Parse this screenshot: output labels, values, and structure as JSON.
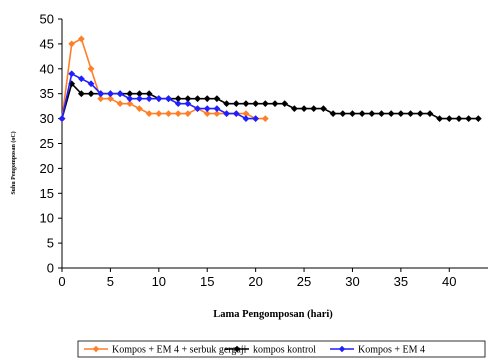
{
  "chart_data": {
    "type": "line",
    "title": "",
    "xlabel": "Lama Pengomposan (hari)",
    "ylabel": "Suhu Pengomposan (oC)",
    "xlim": [
      0,
      44
    ],
    "ylim": [
      0,
      50
    ],
    "xticks": [
      0,
      5,
      10,
      15,
      20,
      25,
      30,
      35,
      40
    ],
    "yticks": [
      0,
      5,
      10,
      15,
      20,
      25,
      30,
      35,
      40,
      45,
      50
    ],
    "grid": false,
    "legend_position": "bottom",
    "series": [
      {
        "name": "Kompos + EM 4 + serbuk gergaji",
        "color": "#ff7f27",
        "marker": "diamond",
        "x": [
          0,
          1,
          2,
          3,
          4,
          5,
          6,
          7,
          8,
          9,
          10,
          11,
          12,
          13,
          14,
          15,
          16,
          17,
          18,
          19,
          20,
          21
        ],
        "y": [
          30,
          45,
          46,
          40,
          34,
          34,
          33,
          33,
          32,
          31,
          31,
          31,
          31,
          31,
          32,
          31,
          31,
          31,
          31,
          31,
          30,
          30
        ]
      },
      {
        "name": "kompos kontrol",
        "color": "#000000",
        "marker": "diamond",
        "x": [
          0,
          1,
          2,
          3,
          4,
          5,
          6,
          7,
          8,
          9,
          10,
          11,
          12,
          13,
          14,
          15,
          16,
          17,
          18,
          19,
          20,
          21,
          22,
          23,
          24,
          25,
          26,
          27,
          28,
          29,
          30,
          31,
          32,
          33,
          34,
          35,
          36,
          37,
          38,
          39,
          40,
          41,
          42,
          43
        ],
        "y": [
          30,
          37,
          35,
          35,
          35,
          35,
          35,
          35,
          35,
          35,
          34,
          34,
          34,
          34,
          34,
          34,
          34,
          33,
          33,
          33,
          33,
          33,
          33,
          33,
          32,
          32,
          32,
          32,
          31,
          31,
          31,
          31,
          31,
          31,
          31,
          31,
          31,
          31,
          31,
          30,
          30,
          30,
          30,
          30
        ]
      },
      {
        "name": "Kompos + EM 4",
        "color": "#1f1fff",
        "marker": "diamond",
        "x": [
          0,
          1,
          2,
          3,
          4,
          5,
          6,
          7,
          8,
          9,
          10,
          11,
          12,
          13,
          14,
          15,
          16,
          17,
          18,
          19,
          20
        ],
        "y": [
          30,
          39,
          38,
          37,
          35,
          35,
          35,
          34,
          34,
          34,
          34,
          34,
          33,
          33,
          32,
          32,
          32,
          31,
          31,
          30,
          30
        ]
      }
    ]
  }
}
